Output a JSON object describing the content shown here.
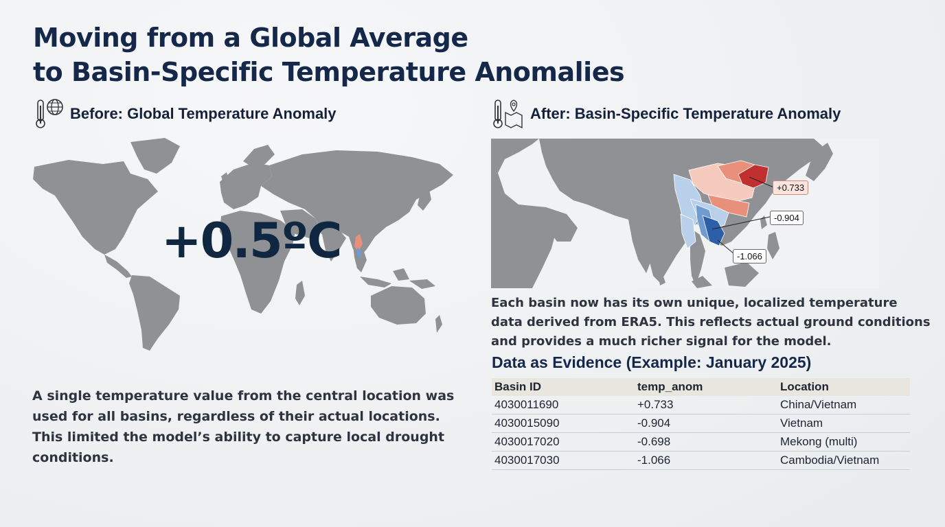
{
  "title": {
    "line1": "Moving from a Global Average",
    "line2": "to Basin-Specific Temperature Anomalies"
  },
  "before": {
    "icon": "thermometer-globe-icon",
    "heading": "Before: Global Temperature Anomaly",
    "value": "+0.5ºC",
    "description": [
      "A single temperature value from the central location was",
      "used for all basins, regardless of their actual locations.",
      "This limited the model’s ability to capture local drought",
      "conditions."
    ]
  },
  "after": {
    "icon": "thermometer-map-pin-icon",
    "heading": "After: Basin-Specific Temperature Anomaly",
    "callouts": [
      "+0.733",
      "-0.904",
      "-1.066"
    ],
    "description": [
      "Each basin now has its own unique, localized temperature",
      "data derived from ERA5. This reflects actual ground conditions",
      "and provides a much richer signal for the model."
    ]
  },
  "colors": {
    "land": "#8f9194",
    "warm_strong": "#c0302f",
    "warm_mid": "#e8907c",
    "warm_light": "#f6cbbd",
    "cool_strong": "#2d5ea8",
    "cool_mid": "#6f9bd0",
    "cool_light": "#b9d0ea"
  },
  "evidence": {
    "title": "Data as Evidence (Example: January 2025)",
    "columns": [
      "Basin ID",
      "temp_anom",
      "Location"
    ],
    "rows": [
      [
        "4030011690",
        "+0.733",
        "China/Vietnam"
      ],
      [
        "4030015090",
        "-0.904",
        "Vietnam"
      ],
      [
        "4030017020",
        "-0.698",
        "Mekong (multi)"
      ],
      [
        "4030017030",
        "-1.066",
        "Cambodia/Vietnam"
      ]
    ]
  }
}
